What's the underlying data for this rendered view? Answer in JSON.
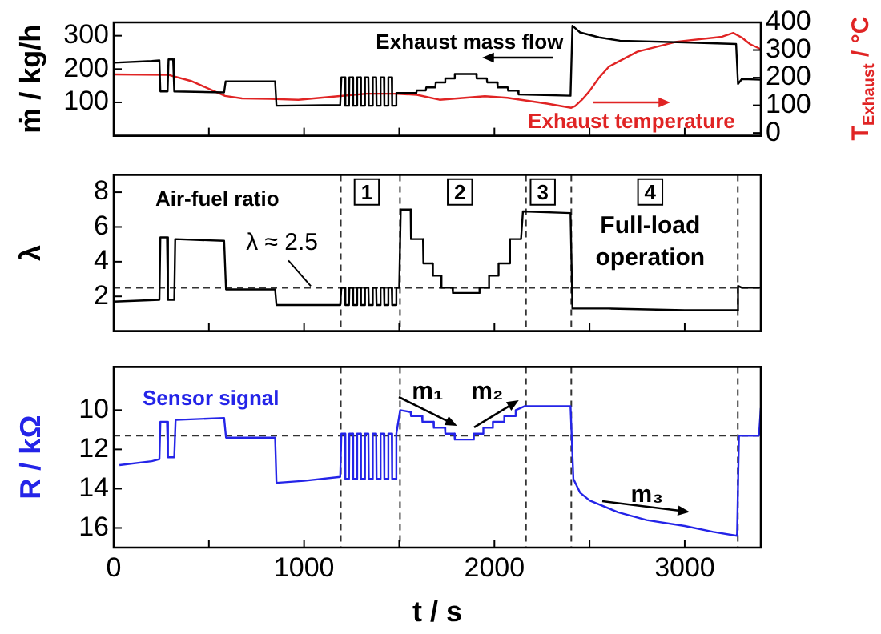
{
  "chart_data": [
    {
      "type": "line",
      "ylabel": "ṁ / kg/h",
      "y2label": "T$_{Exhaust}$ / °C",
      "xlim": [
        0,
        3400
      ],
      "xticks": [
        0,
        {
          "value": 500,
          "label": null
        },
        1000,
        {
          "value": 1500,
          "label": null
        },
        2000,
        {
          "value": 2500,
          "label": null
        },
        3000
      ],
      "ylim": [
        0,
        340
      ],
      "yticks": [
        100,
        200,
        300
      ],
      "y2lim": [
        -10,
        400
      ],
      "y2ticks": [
        0,
        100,
        200,
        300,
        400
      ],
      "tick_labels": "y",
      "marker": "none",
      "series": [
        {
          "name": "Exhaust mass flow",
          "color": "#000000",
          "x": [
            0,
            200,
            240,
            245,
            283,
            288,
            312,
            318,
            580,
            588,
            848,
            855,
            1190,
            1196,
            1215,
            1217,
            1236,
            1238,
            1256,
            1258,
            1277,
            1279,
            1297,
            1299,
            1318,
            1320,
            1338,
            1340,
            1359,
            1361,
            1379,
            1381,
            1400,
            1402,
            1420,
            1422,
            1441,
            1443,
            1461,
            1463,
            1482,
            1485,
            1590,
            1592,
            1640,
            1642,
            1690,
            1692,
            1740,
            1742,
            1790,
            1792,
            1905,
            1907,
            1960,
            1962,
            2015,
            2017,
            2070,
            2072,
            2125,
            2127,
            2400,
            2410,
            2450,
            2550,
            2660,
            3000,
            3270,
            3280,
            3300,
            3400
          ],
          "values": [
            219,
            224,
            226,
            133,
            133,
            229,
            229,
            133,
            130,
            163,
            163,
            90,
            92,
            175,
            175,
            90,
            90,
            175,
            175,
            90,
            90,
            175,
            175,
            90,
            90,
            175,
            175,
            90,
            90,
            175,
            175,
            90,
            90,
            175,
            175,
            90,
            90,
            175,
            175,
            90,
            90,
            128,
            128,
            136,
            136,
            145,
            145,
            160,
            160,
            172,
            172,
            185,
            185,
            172,
            172,
            160,
            160,
            145,
            145,
            135,
            135,
            124,
            120,
            330,
            310,
            295,
            285,
            280,
            275,
            155,
            170,
            168
          ]
        },
        {
          "name": "Exhaust temperature",
          "color": "#e02424",
          "axis": "y2",
          "x": [
            0,
            288,
            406,
            585,
            674,
            822,
            970,
            1178,
            1326,
            1475,
            1593,
            1712,
            1950,
            2068,
            2276,
            2404,
            2424,
            2460,
            2498,
            2550,
            2602,
            2751,
            2958,
            3196,
            3255,
            3300,
            3344,
            3400
          ],
          "values": [
            212,
            210,
            188,
            134,
            125,
            123,
            120,
            133,
            142,
            142,
            138,
            120,
            133,
            127,
            106,
            91,
            97,
            120,
            150,
            200,
            240,
            294,
            330,
            348,
            362,
            345,
            321,
            303
          ]
        }
      ]
    },
    {
      "type": "line",
      "ylabel": "λ",
      "xlim": [
        0,
        3400
      ],
      "xticks": [
        0,
        {
          "value": 500,
          "label": null
        },
        1000,
        {
          "value": 1500,
          "label": null
        },
        2000,
        {
          "value": 2500,
          "label": null
        },
        3000
      ],
      "ylim": [
        0,
        9
      ],
      "yticks": [
        2,
        4,
        6,
        8
      ],
      "tick_labels": "y",
      "marker": "none",
      "series": [
        {
          "name": "Air-fuel ratio",
          "color": "#000000",
          "x": [
            0,
            240,
            245,
            280,
            285,
            318,
            323,
            580,
            590,
            848,
            855,
            1190,
            1196,
            1215,
            1217,
            1236,
            1238,
            1256,
            1258,
            1277,
            1279,
            1297,
            1299,
            1318,
            1320,
            1338,
            1340,
            1359,
            1361,
            1379,
            1381,
            1400,
            1402,
            1420,
            1422,
            1441,
            1443,
            1461,
            1463,
            1482,
            1485,
            1500,
            1508,
            1560,
            1562,
            1625,
            1627,
            1675,
            1677,
            1720,
            1722,
            1780,
            1782,
            1920,
            1922,
            1970,
            1972,
            2020,
            2022,
            2080,
            2082,
            2140,
            2150,
            2400,
            2410,
            2600,
            3000,
            3275,
            3280,
            3300,
            3400
          ],
          "values": [
            1.7,
            1.8,
            5.4,
            5.4,
            1.8,
            1.8,
            5.3,
            5.2,
            2.4,
            2.4,
            1.5,
            1.5,
            2.5,
            2.5,
            1.5,
            1.5,
            2.5,
            2.5,
            1.5,
            1.5,
            2.5,
            2.5,
            1.5,
            1.5,
            2.5,
            2.5,
            1.5,
            1.5,
            2.5,
            2.5,
            1.5,
            1.5,
            2.5,
            2.5,
            1.5,
            1.5,
            2.5,
            2.5,
            1.5,
            1.5,
            2.5,
            2.5,
            7,
            7,
            5.3,
            5.3,
            3.9,
            3.9,
            3.2,
            3.2,
            2.5,
            2.5,
            2.2,
            2.2,
            2.5,
            2.5,
            3.2,
            3.2,
            3.9,
            3.9,
            5.3,
            5.3,
            6.9,
            6.8,
            1.3,
            1.3,
            1.2,
            1.2,
            2.6,
            2.5,
            2.5
          ]
        }
      ],
      "ref_lines": [
        {
          "axis": "y",
          "value": 2.5,
          "label": "λ ≈ 2.5",
          "color": "#333333",
          "line_style": "dashed"
        },
        {
          "axis": "x",
          "value": 1193,
          "color": "#333333",
          "line_style": "dashed"
        },
        {
          "axis": "x",
          "value": 1504,
          "color": "#333333",
          "line_style": "dashed"
        },
        {
          "axis": "x",
          "value": 2166,
          "color": "#333333",
          "line_style": "dashed"
        },
        {
          "axis": "x",
          "value": 2404,
          "color": "#333333",
          "line_style": "dashed"
        },
        {
          "axis": "x",
          "value": 3279,
          "color": "#333333",
          "line_style": "dashed"
        }
      ],
      "annotations": [
        "1",
        "2",
        "3",
        "4",
        "Full-load operation"
      ]
    },
    {
      "type": "line",
      "ylabel": "R / kΩ",
      "xlabel": "t / s",
      "xlim": [
        0,
        3400
      ],
      "xticks": [
        0,
        {
          "value": 500,
          "label": null
        },
        1000,
        {
          "value": 1500,
          "label": null
        },
        2000,
        {
          "value": 2500,
          "label": null
        },
        3000
      ],
      "ylim": [
        17,
        7.8
      ],
      "yticks": [
        10,
        12,
        14,
        16
      ],
      "marker": "none",
      "series": [
        {
          "name": "Sensor signal",
          "color": "#2424e8",
          "x": [
            30,
            200,
            240,
            245,
            280,
            285,
            318,
            325,
            580,
            590,
            848,
            855,
            1000,
            1190,
            1196,
            1215,
            1217,
            1236,
            1238,
            1256,
            1258,
            1277,
            1279,
            1297,
            1299,
            1318,
            1320,
            1338,
            1340,
            1359,
            1361,
            1379,
            1381,
            1400,
            1402,
            1420,
            1422,
            1441,
            1443,
            1461,
            1463,
            1482,
            1485,
            1505,
            1560,
            1562,
            1620,
            1622,
            1680,
            1682,
            1740,
            1742,
            1790,
            1792,
            1890,
            1892,
            1940,
            1942,
            1990,
            1992,
            2050,
            2052,
            2110,
            2112,
            2160,
            2400,
            2415,
            2450,
            2500,
            2650,
            2800,
            3000,
            3150,
            3275,
            3285,
            3390,
            3400
          ],
          "values": [
            12.8,
            12.6,
            12.5,
            10.6,
            10.6,
            12.4,
            12.4,
            10.5,
            10.4,
            11.4,
            11.4,
            13.7,
            13.6,
            13.4,
            11.2,
            11.2,
            13.5,
            13.5,
            11.2,
            11.2,
            13.5,
            13.5,
            11.2,
            11.2,
            13.5,
            13.5,
            11.2,
            11.2,
            13.5,
            13.5,
            11.2,
            11.2,
            13.5,
            13.5,
            11.2,
            11.2,
            13.5,
            13.5,
            11.2,
            11.2,
            13.5,
            13.5,
            11.2,
            10,
            10.1,
            10.3,
            10.3,
            10.6,
            10.6,
            10.9,
            10.9,
            11.2,
            11.2,
            11.5,
            11.5,
            11.2,
            11.2,
            10.9,
            10.9,
            10.6,
            10.6,
            10.3,
            10.3,
            10,
            9.8,
            9.8,
            13.5,
            14.2,
            14.6,
            15.2,
            15.6,
            15.9,
            16.2,
            16.4,
            11.3,
            11.3,
            9.9
          ]
        }
      ],
      "ref_lines": [
        {
          "axis": "y",
          "value": 11.3,
          "color": "#333333",
          "line_style": "dashed"
        },
        {
          "axis": "x",
          "value": 1193,
          "color": "#333333",
          "line_style": "dashed"
        },
        {
          "axis": "x",
          "value": 1504,
          "color": "#333333",
          "line_style": "dashed"
        },
        {
          "axis": "x",
          "value": 2166,
          "color": "#333333",
          "line_style": "dashed"
        },
        {
          "axis": "x",
          "value": 2404,
          "color": "#333333",
          "line_style": "dashed"
        },
        {
          "axis": "x",
          "value": 3279,
          "color": "#333333",
          "line_style": "dashed"
        }
      ],
      "annotations": [
        "m₁",
        "m₂",
        "m₃"
      ]
    }
  ]
}
